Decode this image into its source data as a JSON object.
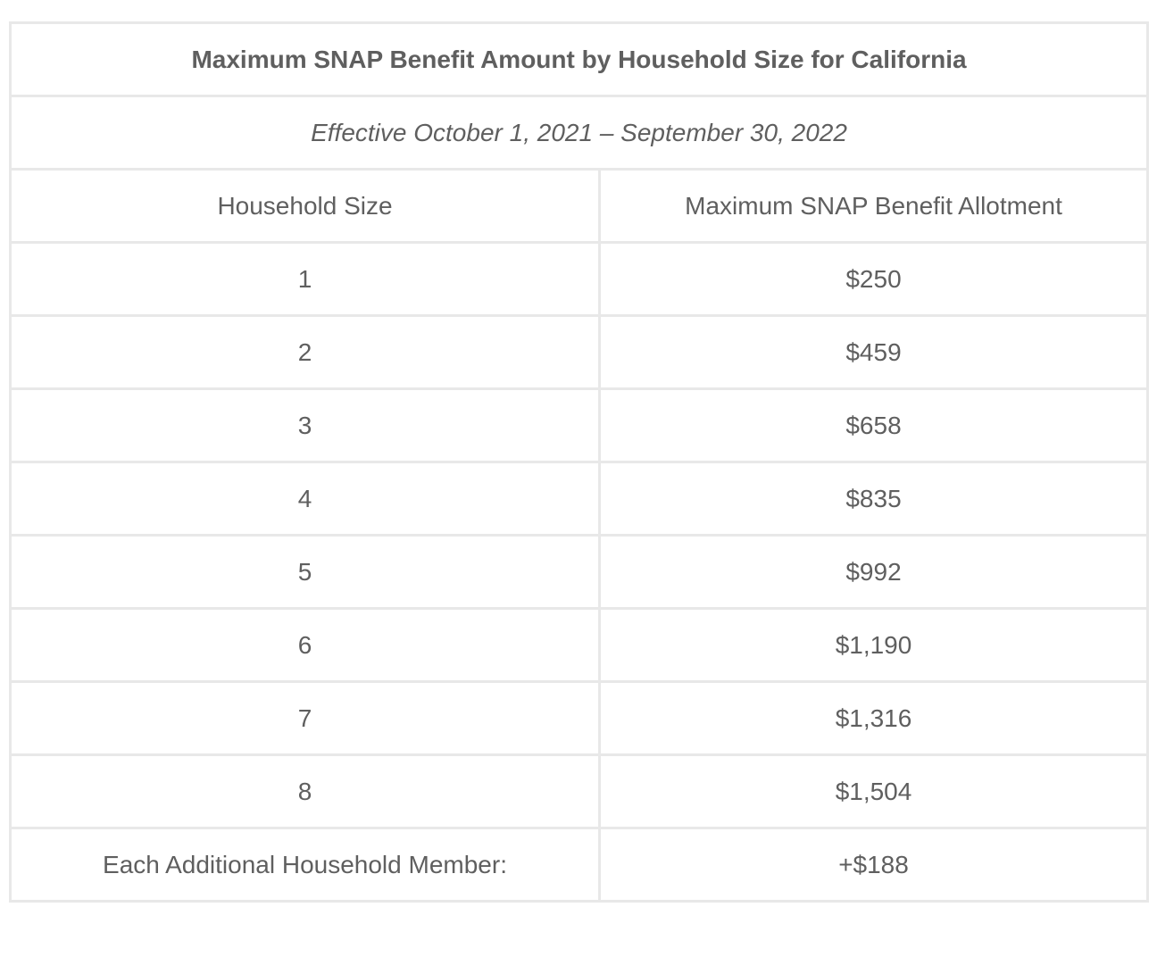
{
  "table": {
    "title": "Maximum SNAP Benefit Amount by Household Size for California",
    "subtitle": "Effective October 1, 2021 – September 30, 2022",
    "headers": [
      "Household Size",
      "Maximum SNAP Benefit Allotment"
    ],
    "rows": [
      [
        "1",
        "$250"
      ],
      [
        "2",
        "$459"
      ],
      [
        "3",
        "$658"
      ],
      [
        "4",
        "$835"
      ],
      [
        "5",
        "$992"
      ],
      [
        "6",
        "$1,190"
      ],
      [
        "7",
        "$1,316"
      ],
      [
        "8",
        "$1,504"
      ],
      [
        "Each Additional Household Member:",
        "+$188"
      ]
    ]
  }
}
